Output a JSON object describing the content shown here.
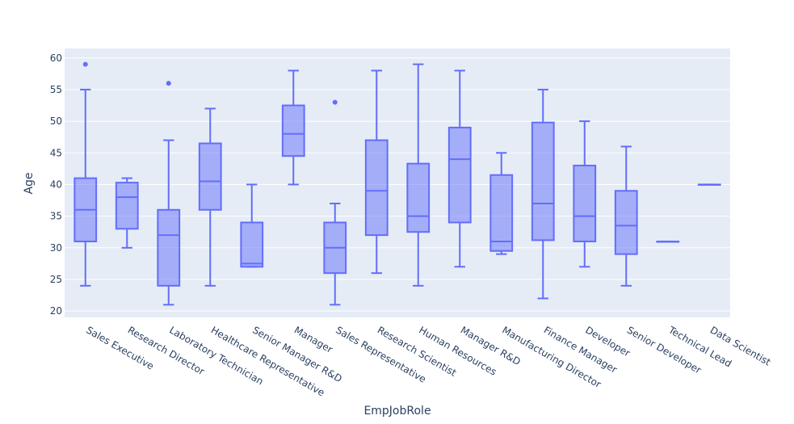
{
  "chart_data": {
    "type": "box",
    "title": "",
    "xlabel": "EmpJobRole",
    "ylabel": "Age",
    "ylim": [
      19,
      61.5
    ],
    "yticks": [
      20,
      25,
      30,
      35,
      40,
      45,
      50,
      55,
      60
    ],
    "grid": true,
    "legend": "none",
    "colors": {
      "box_line": "#636efa",
      "box_fill": "rgba(99,110,250,0.5)",
      "plot_bg": "#e5ecf6",
      "grid": "#ffffff",
      "text": "#2a3f5f"
    },
    "categories": [
      "Sales Executive",
      "Research Director",
      "Laboratory Technician",
      "Healthcare Representative",
      "Senior Manager R&D",
      "Manager",
      "Sales Representative",
      "Research Scientist",
      "Human Resources",
      "Manager R&D",
      "Manufacturing Director",
      "Finance Manager",
      "Developer",
      "Senior Developer",
      "Technical Lead",
      "Data Scientist"
    ],
    "boxes": [
      {
        "min": 24,
        "q1": 31,
        "median": 36,
        "q3": 41,
        "max": 55,
        "outliers": [
          59
        ]
      },
      {
        "min": 30,
        "q1": 33,
        "median": 38,
        "q3": 40.3,
        "max": 41,
        "outliers": []
      },
      {
        "min": 21,
        "q1": 24,
        "median": 32,
        "q3": 36,
        "max": 47,
        "outliers": [
          56
        ]
      },
      {
        "min": 24,
        "q1": 36,
        "median": 40.5,
        "q3": 46.5,
        "max": 52,
        "outliers": []
      },
      {
        "min": 27,
        "q1": 27,
        "median": 27.5,
        "q3": 34,
        "max": 40,
        "outliers": []
      },
      {
        "min": 40,
        "q1": 44.5,
        "median": 48,
        "q3": 52.5,
        "max": 58,
        "outliers": []
      },
      {
        "min": 21,
        "q1": 26,
        "median": 30,
        "q3": 34,
        "max": 37,
        "outliers": [
          53
        ]
      },
      {
        "min": 26,
        "q1": 32,
        "median": 39,
        "q3": 47,
        "max": 58,
        "outliers": []
      },
      {
        "min": 24,
        "q1": 32.5,
        "median": 35,
        "q3": 43.3,
        "max": 59,
        "outliers": []
      },
      {
        "min": 27,
        "q1": 34,
        "median": 44,
        "q3": 49,
        "max": 58,
        "outliers": []
      },
      {
        "min": 29,
        "q1": 29.5,
        "median": 31,
        "q3": 41.5,
        "max": 45,
        "outliers": []
      },
      {
        "min": 22,
        "q1": 31.2,
        "median": 37,
        "q3": 49.8,
        "max": 55,
        "outliers": []
      },
      {
        "min": 27,
        "q1": 31,
        "median": 35,
        "q3": 43,
        "max": 50,
        "outliers": []
      },
      {
        "min": 24,
        "q1": 29,
        "median": 33.5,
        "q3": 39,
        "max": 46,
        "outliers": []
      },
      {
        "min": 31,
        "q1": 31,
        "median": 31,
        "q3": 31,
        "max": 31,
        "outliers": []
      },
      {
        "min": 40,
        "q1": 40,
        "median": 40,
        "q3": 40,
        "max": 40,
        "outliers": []
      }
    ]
  }
}
